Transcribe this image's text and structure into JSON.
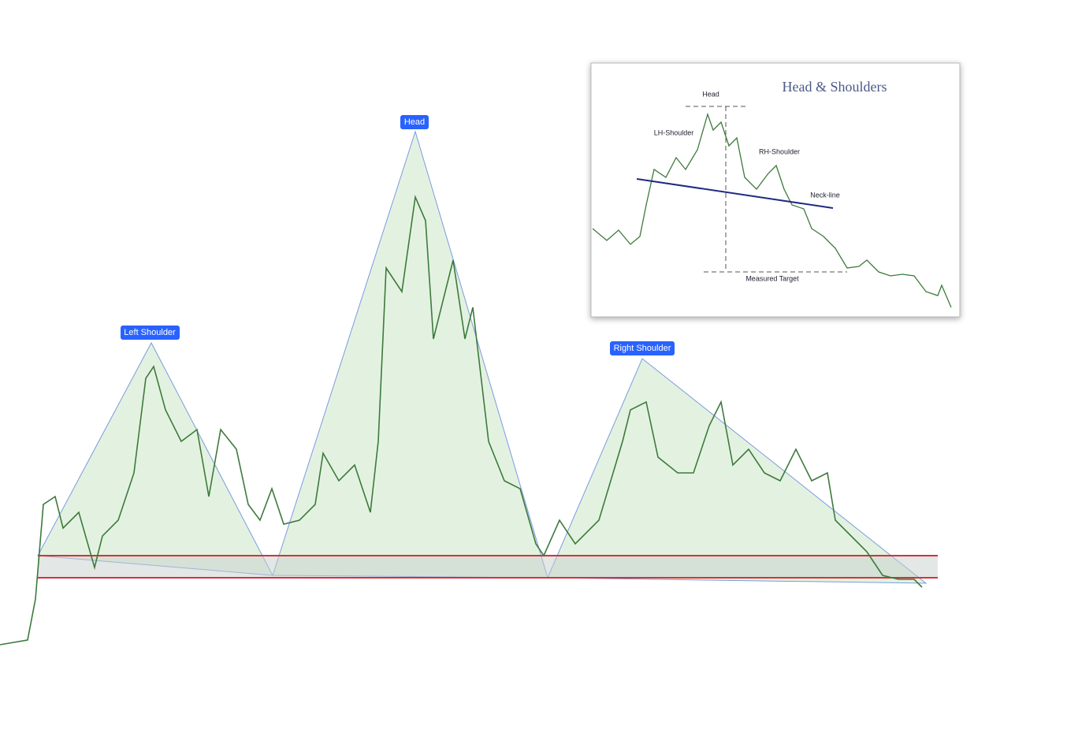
{
  "main": {
    "labels": [
      "Left Shoulder",
      "Head",
      "Right Shoulder"
    ]
  },
  "inset": {
    "title": "Head & Shoulders",
    "labels": [
      "Head",
      "LH-Shoulder",
      "RH-Shoulder",
      "Neck-line",
      "Measured Target"
    ]
  }
}
